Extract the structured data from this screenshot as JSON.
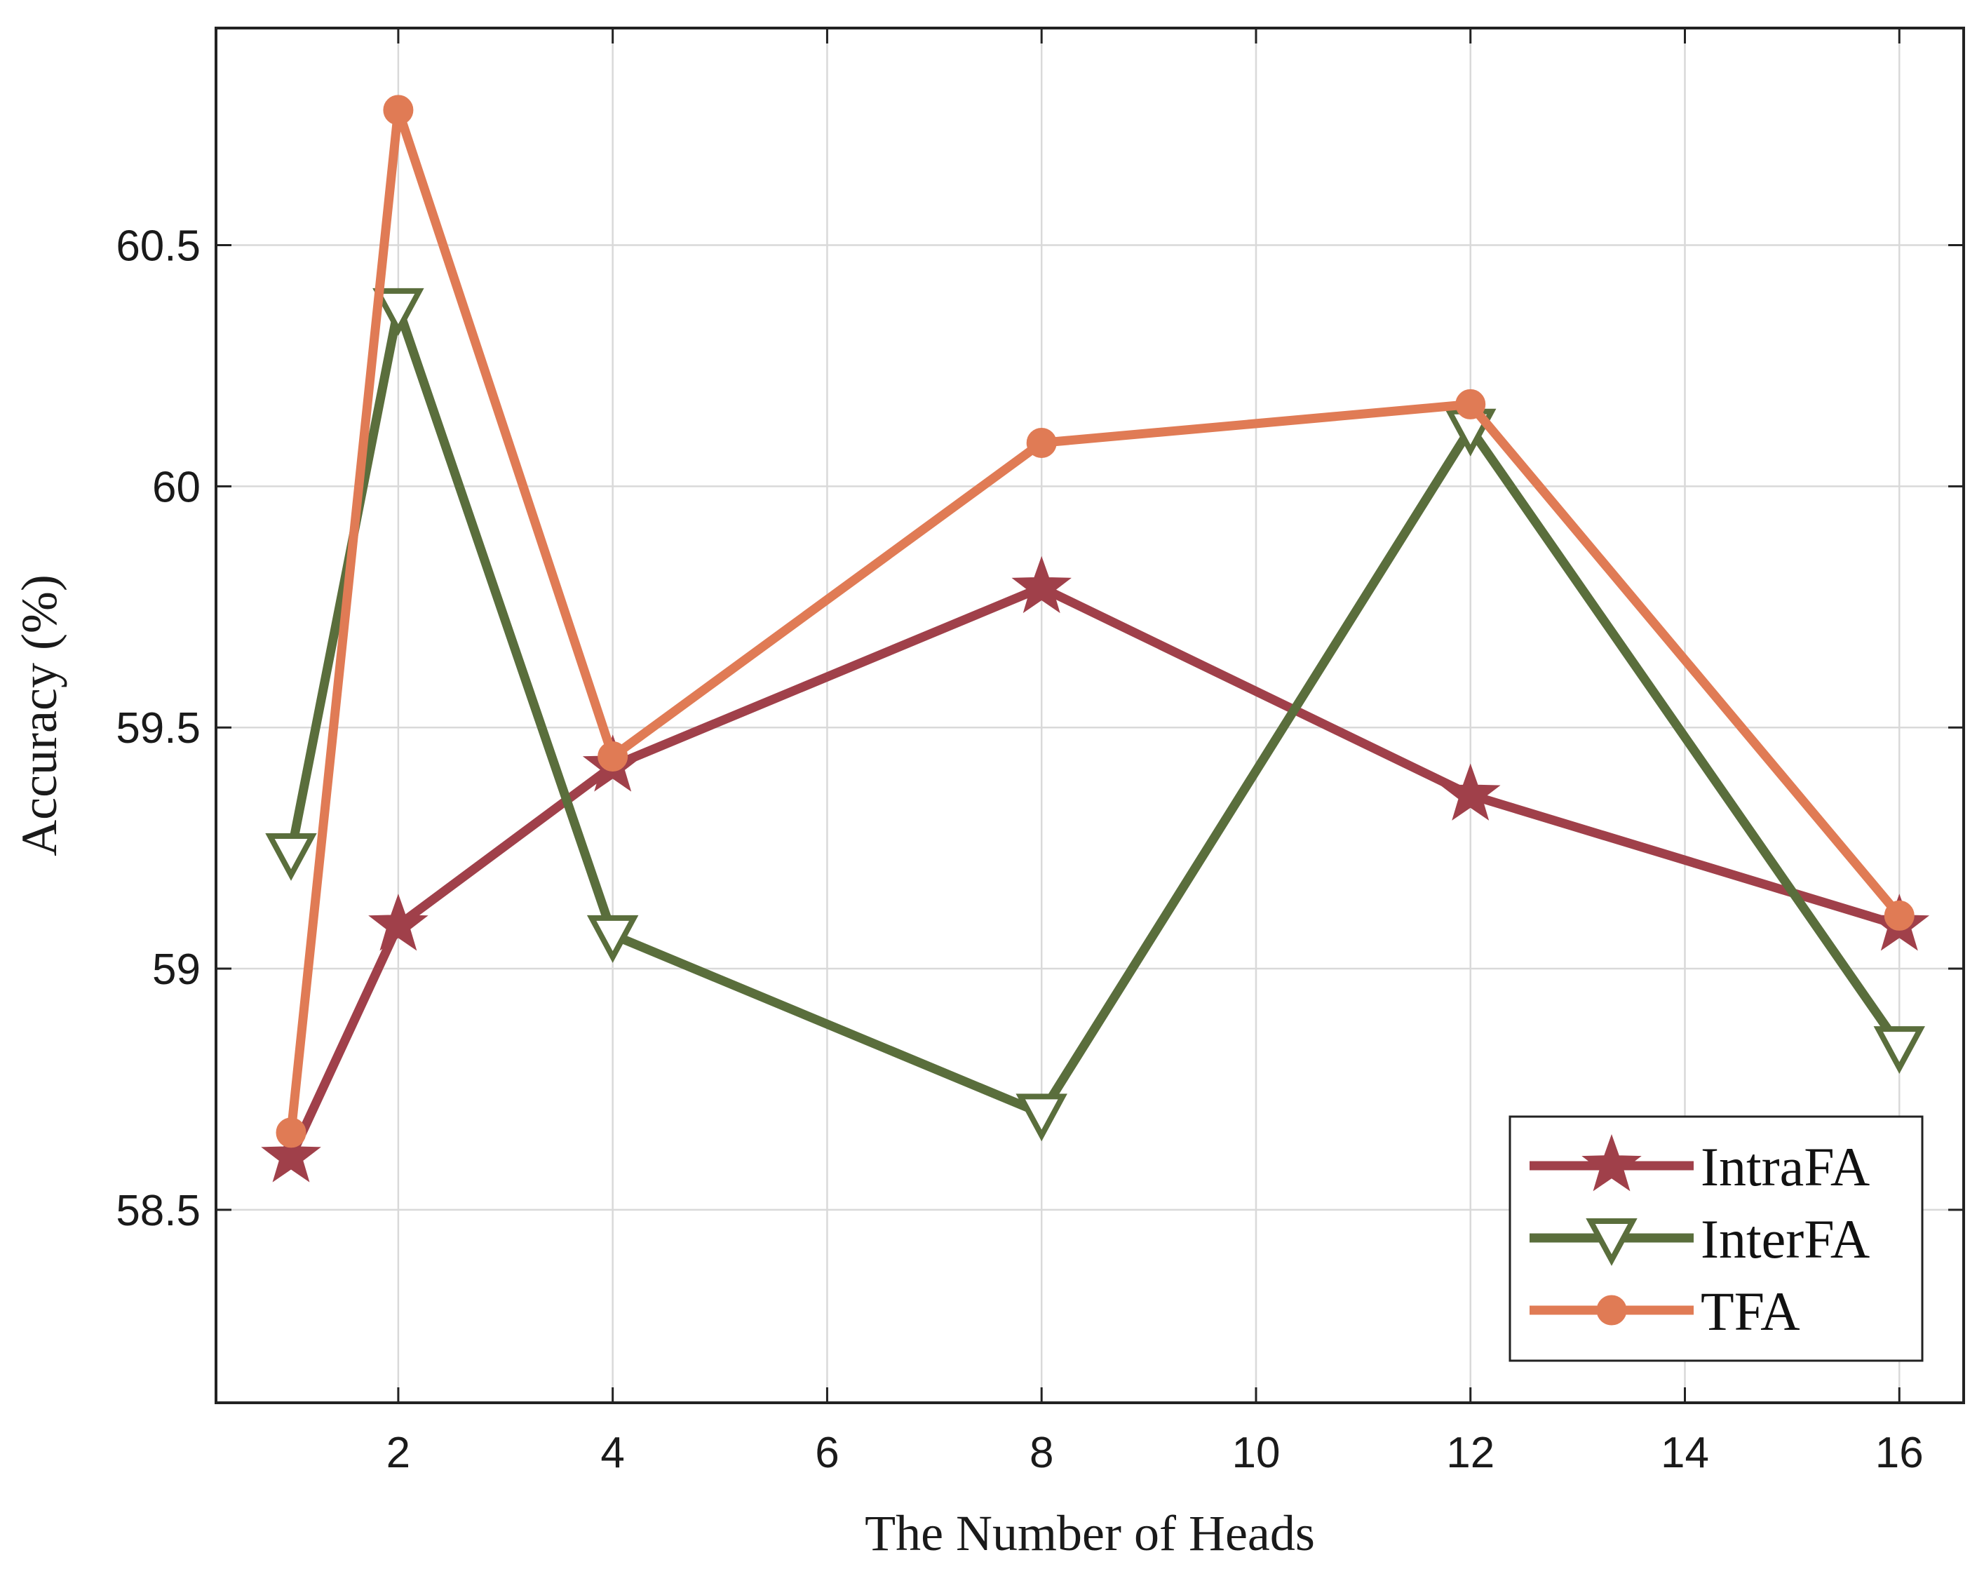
{
  "chart_data": {
    "type": "line",
    "title": "",
    "xlabel": "The Number of Heads",
    "ylabel": "Accuracy (%)",
    "xlim": [
      0.3,
      16.6
    ],
    "ylim": [
      58.1,
      60.95
    ],
    "xticks": [
      2,
      4,
      6,
      8,
      10,
      12,
      14,
      16
    ],
    "yticks": [
      58.5,
      59,
      59.5,
      60,
      60.5
    ],
    "xtick_labels": [
      "2",
      "4",
      "6",
      "8",
      "10",
      "12",
      "14",
      "16"
    ],
    "ytick_labels": [
      "58.5",
      "59",
      "59.5",
      "60",
      "60.5"
    ],
    "grid": true,
    "legend_position": "bottom-right",
    "x": [
      1,
      2,
      4,
      8,
      12,
      16
    ],
    "series": [
      {
        "name": "IntraFA",
        "color": "#a0404a",
        "marker": "star",
        "values": [
          58.61,
          59.09,
          59.42,
          59.79,
          59.36,
          59.09
        ]
      },
      {
        "name": "InterFA",
        "color": "#5a6e3c",
        "marker": "triangle-down",
        "values": [
          59.24,
          60.37,
          59.07,
          58.7,
          60.12,
          58.84
        ]
      },
      {
        "name": "TFA",
        "color": "#e07b55",
        "marker": "circle",
        "values": [
          58.66,
          60.78,
          59.44,
          60.09,
          60.17,
          59.11
        ]
      }
    ]
  }
}
